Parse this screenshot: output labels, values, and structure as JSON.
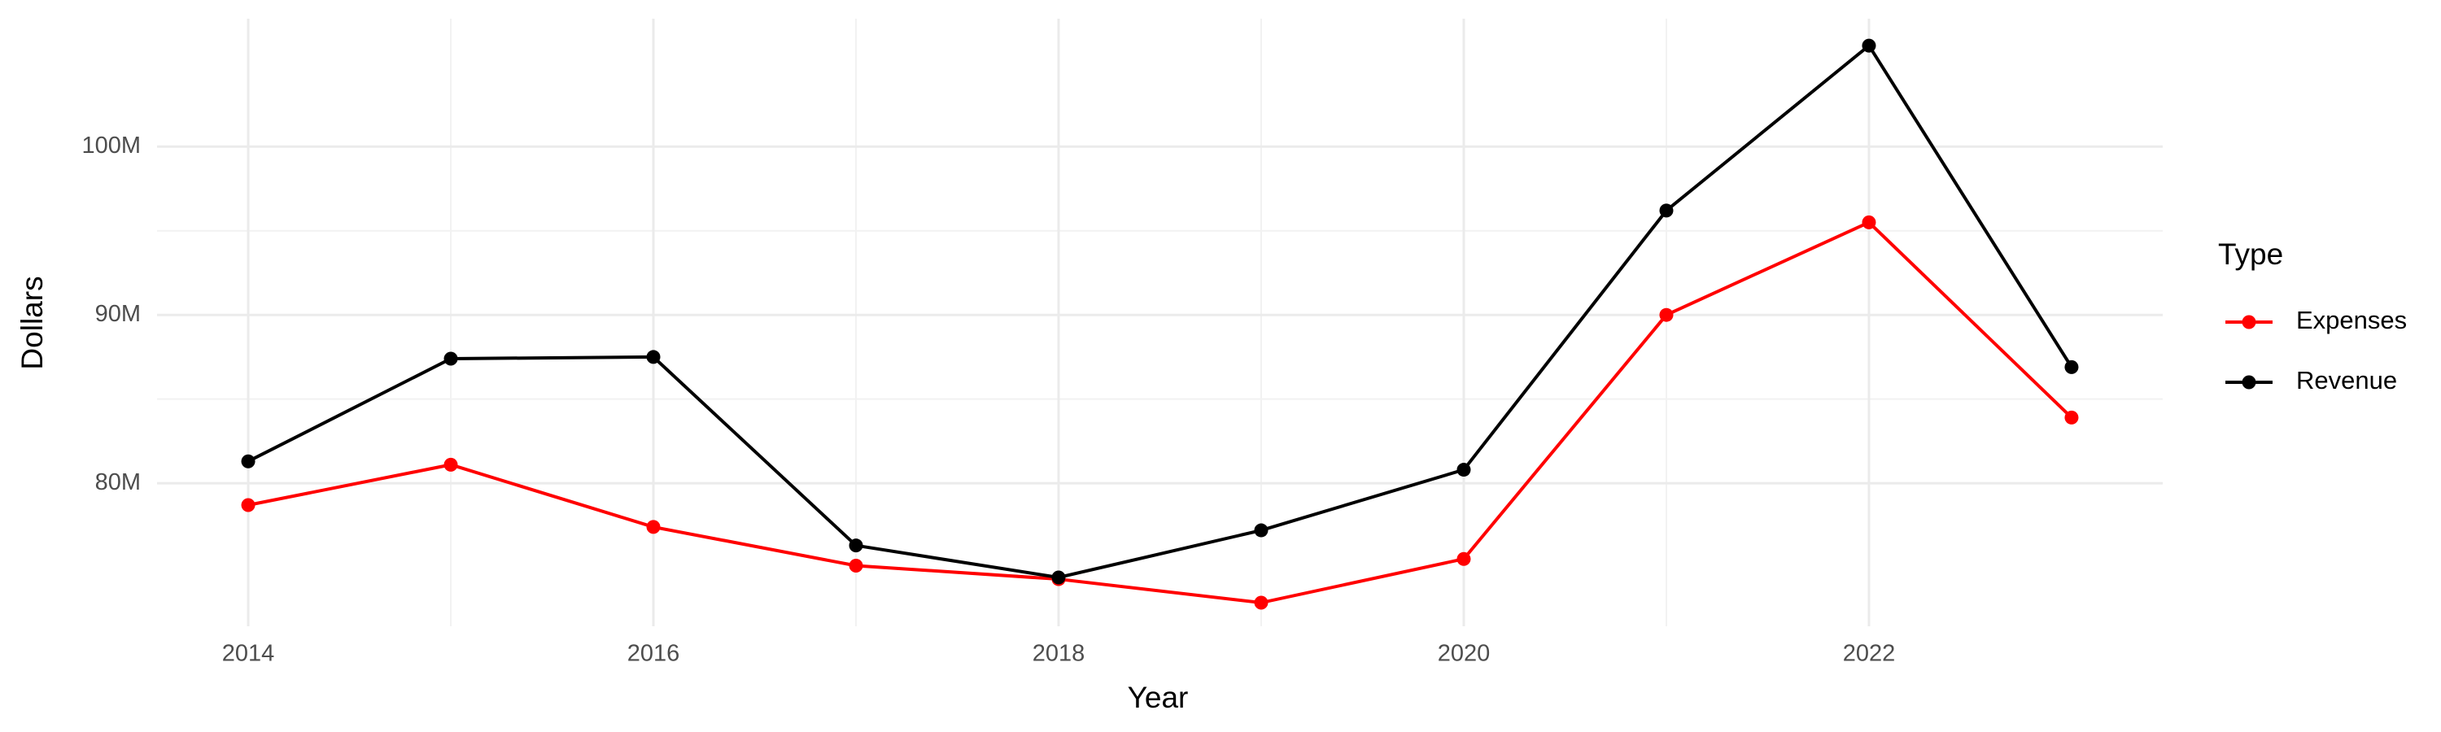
{
  "chart_data": {
    "type": "line",
    "x_label": "Year",
    "y_label": "Dollars",
    "legend_title": "Type",
    "x": [
      2014,
      2015,
      2016,
      2017,
      2018,
      2019,
      2020,
      2021,
      2022,
      2023
    ],
    "series": [
      {
        "name": "Expenses",
        "color": "#ff0000",
        "values": [
          78700000,
          81100000,
          77400000,
          75100000,
          74300000,
          72900000,
          75500000,
          90000000,
          95500000,
          83900000
        ]
      },
      {
        "name": "Revenue",
        "color": "#000000",
        "values": [
          81300000,
          87400000,
          87500000,
          76300000,
          74400000,
          77200000,
          80800000,
          96200000,
          106000000,
          86900000
        ]
      }
    ],
    "xlim": [
      2013.55,
      2023.45
    ],
    "xticks": [
      2014,
      2016,
      2018,
      2020,
      2022
    ],
    "ylim": [
      71500000,
      107600000
    ],
    "yticks": [
      {
        "value": 80000000,
        "label": "80M"
      },
      {
        "value": 90000000,
        "label": "90M"
      },
      {
        "value": 100000000,
        "label": "100M"
      }
    ],
    "grid": true,
    "legend": "right"
  }
}
